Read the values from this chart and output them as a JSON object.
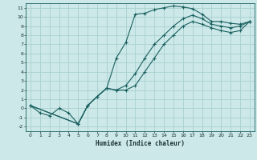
{
  "xlabel": "Humidex (Indice chaleur)",
  "bg_color": "#cce8e8",
  "grid_color": "#aacfcf",
  "line_color": "#1a6060",
  "xlim": [
    -0.5,
    23.5
  ],
  "ylim": [
    -2.5,
    11.5
  ],
  "xticks": [
    0,
    1,
    2,
    3,
    4,
    5,
    6,
    7,
    8,
    9,
    10,
    11,
    12,
    13,
    14,
    15,
    16,
    17,
    18,
    19,
    20,
    21,
    22,
    23
  ],
  "yticks": [
    -2,
    -1,
    0,
    1,
    2,
    3,
    4,
    5,
    6,
    7,
    8,
    9,
    10,
    11
  ],
  "line1_x": [
    0,
    1,
    2,
    3,
    4,
    5,
    6,
    7,
    8,
    9,
    10,
    11,
    12,
    13,
    14,
    15,
    16,
    17,
    18,
    19,
    20,
    21,
    22,
    23
  ],
  "line1_y": [
    0.3,
    -0.5,
    -0.8,
    0.0,
    -0.5,
    -1.7,
    0.3,
    1.3,
    2.2,
    5.5,
    7.2,
    10.3,
    10.4,
    10.8,
    11.0,
    11.2,
    11.1,
    10.9,
    10.3,
    9.5,
    9.5,
    9.3,
    9.2,
    9.5
  ],
  "line2_x": [
    0,
    5,
    6,
    7,
    8,
    9,
    10,
    11,
    12,
    13,
    14,
    15,
    16,
    17,
    18,
    19,
    20,
    21,
    22,
    23
  ],
  "line2_y": [
    0.3,
    -1.7,
    0.3,
    1.3,
    2.2,
    2.0,
    2.5,
    3.8,
    5.5,
    7.0,
    8.0,
    9.0,
    9.8,
    10.2,
    9.8,
    9.2,
    9.0,
    8.8,
    9.0,
    9.5
  ],
  "line3_x": [
    0,
    5,
    6,
    7,
    8,
    9,
    10,
    11,
    12,
    13,
    14,
    15,
    16,
    17,
    18,
    19,
    20,
    21,
    22,
    23
  ],
  "line3_y": [
    0.3,
    -1.7,
    0.3,
    1.3,
    2.2,
    2.0,
    2.0,
    2.5,
    4.0,
    5.5,
    7.0,
    8.0,
    9.0,
    9.5,
    9.2,
    8.8,
    8.5,
    8.3,
    8.5,
    9.5
  ]
}
